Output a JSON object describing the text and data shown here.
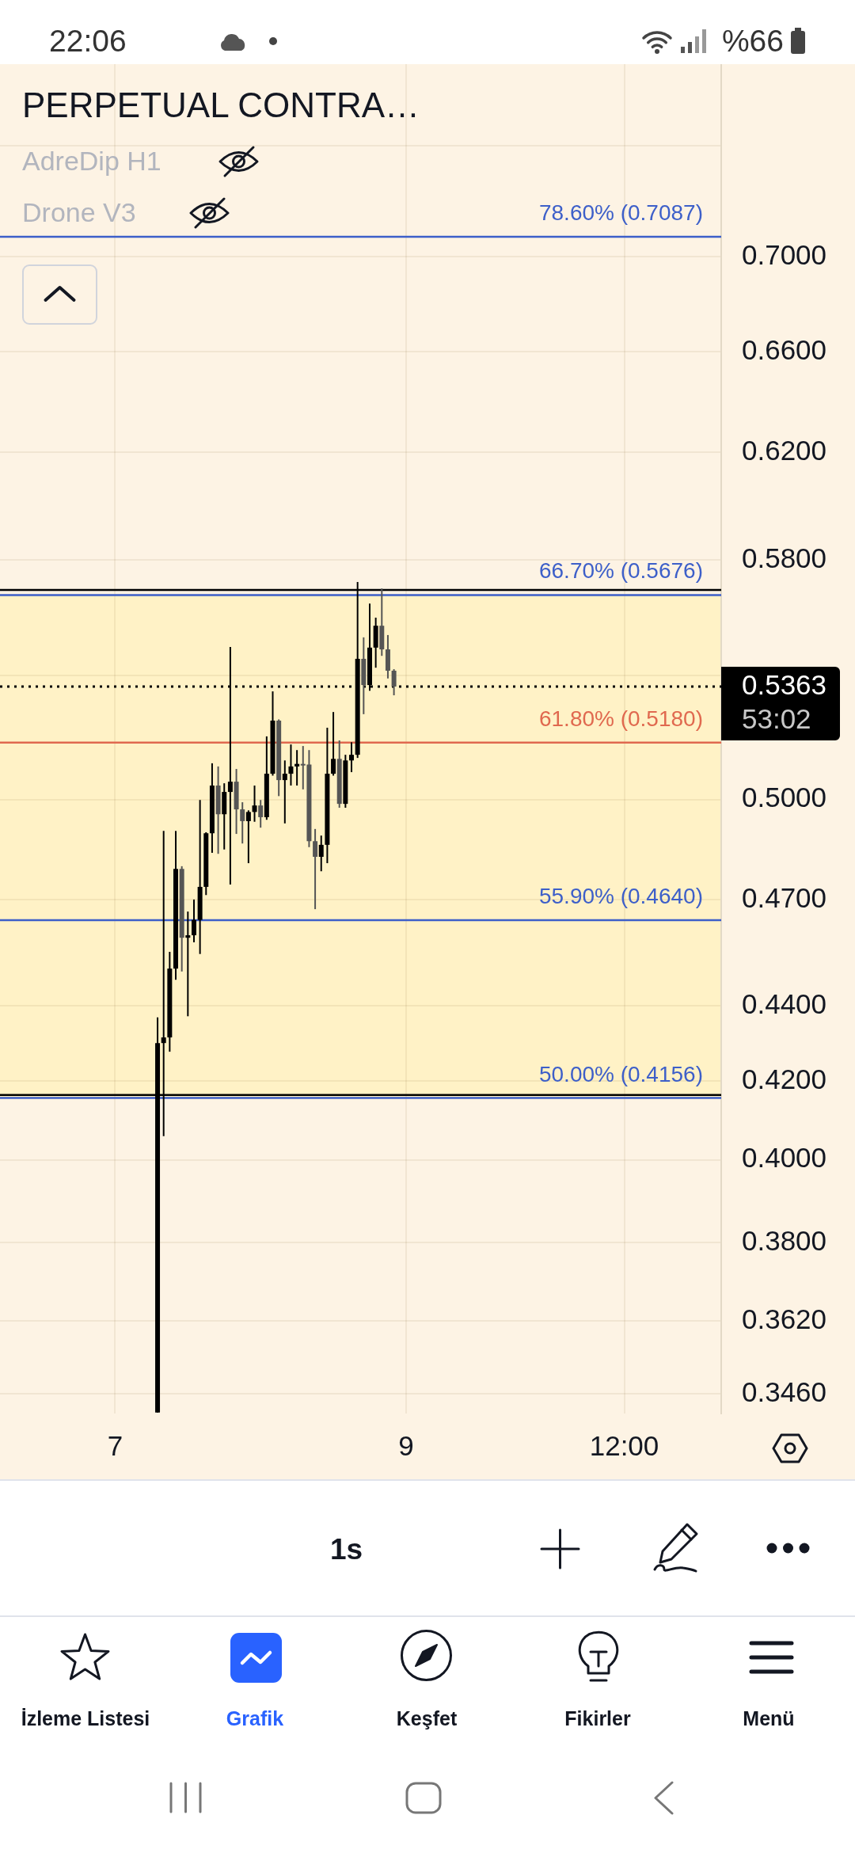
{
  "chart_data": {
    "type": "candlestick",
    "title": "PERPETUAL CONTRA…",
    "categories": [
      null,
      null,
      null,
      null,
      null,
      null,
      null,
      null,
      null,
      null,
      null,
      null,
      null,
      null,
      null,
      null,
      null,
      null,
      null,
      "7",
      null,
      null,
      null,
      null,
      null,
      null,
      null,
      null,
      null,
      null,
      null,
      null,
      null,
      null,
      null,
      null,
      null,
      null,
      null,
      null,
      null,
      null,
      null,
      null,
      null,
      null,
      null,
      null,
      null,
      null,
      null,
      null,
      null,
      null,
      null,
      null,
      null,
      null,
      null,
      null,
      null,
      null,
      null,
      null,
      null,
      null,
      null,
      "9",
      null,
      null,
      null,
      null,
      null,
      null,
      null,
      null,
      null,
      null,
      null,
      null,
      null,
      null,
      null,
      null,
      null,
      null,
      null,
      null,
      null,
      null,
      null,
      null,
      null,
      null,
      null,
      null,
      null,
      null,
      null,
      null,
      null,
      null,
      null,
      "12:00",
      null,
      null,
      null,
      null,
      null,
      null,
      null,
      null,
      null,
      null,
      null,
      null,
      null,
      null,
      null,
      null
    ],
    "ohlc": [
      null,
      null,
      null,
      null,
      null,
      null,
      null,
      null,
      null,
      null,
      null,
      null,
      null,
      null,
      null,
      null,
      null,
      null,
      null,
      null,
      null,
      null,
      null,
      null,
      null,
      null,
      [
        0.342,
        0.4369,
        0.342,
        0.43
      ],
      [
        0.43,
        0.4904,
        0.4059,
        0.4315
      ],
      [
        0.4315,
        0.455,
        0.4277,
        0.4503
      ],
      [
        0.4503,
        0.4904,
        0.4472,
        0.479
      ],
      [
        0.479,
        0.4798,
        0.4495,
        0.459
      ],
      [
        0.459,
        0.4665,
        0.4372,
        0.4597
      ],
      [
        0.4597,
        0.47,
        0.4577,
        0.4641
      ],
      [
        0.4641,
        0.4999,
        0.4544,
        0.4737
      ],
      [
        0.4737,
        0.49,
        0.4713,
        0.4897
      ],
      [
        0.4897,
        0.5114,
        0.4838,
        0.5044
      ],
      [
        0.5044,
        0.5104,
        0.4835,
        0.4955
      ],
      [
        0.4955,
        0.5051,
        0.4848,
        0.5024
      ],
      [
        0.5024,
        0.5496,
        0.4744,
        0.5056
      ],
      [
        0.5056,
        0.5096,
        0.4895,
        0.497
      ],
      [
        0.497,
        0.4992,
        0.4866,
        0.4934
      ],
      [
        0.4934,
        0.4967,
        0.4807,
        0.4962
      ],
      [
        0.4962,
        0.5044,
        0.4932,
        0.4982
      ],
      [
        0.4982,
        0.4999,
        0.4914,
        0.4946
      ],
      [
        0.4946,
        0.52,
        0.4938,
        0.5081
      ],
      [
        0.5081,
        0.5347,
        0.5075,
        0.5251
      ],
      [
        0.5251,
        0.5255,
        0.5011,
        0.5061
      ],
      [
        0.5061,
        0.5123,
        0.4927,
        0.5081
      ],
      [
        0.5081,
        0.5174,
        0.5044,
        0.5104
      ],
      [
        0.5104,
        0.5156,
        0.5044,
        0.5112
      ],
      [
        0.5112,
        0.5169,
        0.5032,
        0.511
      ],
      [
        0.511,
        0.5156,
        0.4855,
        0.4873
      ],
      [
        0.4873,
        0.491,
        0.4672,
        0.4826
      ],
      [
        0.4826,
        0.489,
        0.4783,
        0.4862
      ],
      [
        0.4862,
        0.5228,
        0.4807,
        0.5081
      ],
      [
        0.5081,
        0.5279,
        0.5075,
        0.5128
      ],
      [
        0.5128,
        0.5187,
        0.4975,
        0.4987
      ],
      [
        0.4987,
        0.5141,
        0.4975,
        0.5123
      ],
      [
        0.5123,
        0.5181,
        0.5086,
        0.5141
      ],
      [
        0.5141,
        0.5722,
        0.5131,
        0.5456
      ],
      [
        0.5456,
        0.5529,
        0.5272,
        0.5368
      ],
      [
        0.5368,
        0.5646,
        0.5349,
        0.5494
      ],
      [
        0.5494,
        0.5597,
        0.5426,
        0.5569
      ],
      [
        0.5569,
        0.5699,
        0.5466,
        0.5488
      ],
      [
        0.5488,
        0.5537,
        0.539,
        0.5416
      ],
      [
        0.5416,
        0.5421,
        0.5334,
        0.5363
      ],
      null,
      null,
      null,
      null,
      null,
      null,
      null,
      null,
      null,
      null,
      null,
      null,
      null,
      null,
      null,
      null,
      null,
      null,
      null,
      null,
      null,
      null,
      null,
      null,
      null,
      null,
      null,
      null,
      null,
      null,
      null,
      null,
      null,
      null,
      null,
      null,
      null,
      null,
      null,
      null,
      null,
      null,
      null,
      null,
      null,
      null,
      null,
      null,
      null,
      null,
      null,
      null,
      null,
      null
    ],
    "colors": [
      null,
      null,
      null,
      null,
      null,
      null,
      null,
      null,
      null,
      null,
      null,
      null,
      null,
      null,
      null,
      null,
      null,
      null,
      null,
      null,
      null,
      null,
      null,
      null,
      null,
      null,
      "#000000",
      "#000000",
      "#000000",
      "#000000",
      "#555555",
      "#000000",
      "#000000",
      "#000000",
      "#000000",
      "#000000",
      "#555555",
      "#000000",
      "#000000",
      "#555555",
      "#555555",
      "#000000",
      "#000000",
      "#555555",
      "#000000",
      "#000000",
      "#555555",
      "#000000",
      "#000000",
      "#000000",
      "#555555",
      "#555555",
      "#555555",
      "#000000",
      "#000000",
      "#000000",
      "#555555",
      "#000000",
      "#000000",
      "#000000",
      "#555555",
      "#000000",
      "#000000",
      "#555555",
      "#555555",
      "#555555",
      null,
      null,
      null,
      null,
      null,
      null,
      null,
      null,
      null,
      null,
      null,
      null,
      null,
      null,
      null,
      null,
      null,
      null,
      null,
      null,
      null,
      null,
      null,
      null,
      null,
      null,
      null,
      null,
      null,
      null,
      null,
      null,
      null,
      null,
      null,
      null,
      null,
      null,
      null,
      null,
      null,
      null,
      null,
      null,
      null,
      null,
      null,
      null,
      null,
      null,
      null,
      null,
      null,
      null
    ],
    "ylim": [
      0.3418,
      0.7887
    ],
    "yticks": [
      {
        "value": 0.346,
        "label": "0.3460"
      },
      {
        "value": 0.362,
        "label": "0.3620"
      },
      {
        "value": 0.38,
        "label": "0.3800"
      },
      {
        "value": 0.4,
        "label": "0.4000"
      },
      {
        "value": 0.42,
        "label": "0.4200"
      },
      {
        "value": 0.44,
        "label": "0.4400"
      },
      {
        "value": 0.47,
        "label": "0.4700"
      },
      {
        "value": 0.5,
        "label": "0.5000"
      },
      {
        "value": 0.54,
        "label": null
      },
      {
        "value": 0.58,
        "label": "0.5800"
      },
      {
        "value": 0.62,
        "label": "0.6200"
      },
      {
        "value": 0.66,
        "label": "0.6600"
      },
      {
        "value": 0.7,
        "label": "0.7000"
      },
      {
        "value": 0.75,
        "label": null
      }
    ],
    "log": true,
    "grid": true,
    "bands": [
      {
        "axis": "y",
        "from": 0.4156,
        "to": 0.5676,
        "color": "#fff2c6"
      }
    ],
    "ref_lines": [
      {
        "axis": "y",
        "value": 0.7087,
        "label": "78.60% (0.7087)",
        "color": "#3d5fc9",
        "line_style": "solid"
      },
      {
        "axis": "y",
        "value": 0.5694,
        "color": "#000000",
        "line_style": "solid"
      },
      {
        "axis": "y",
        "value": 0.5676,
        "label": "66.70% (0.5676)",
        "color": "#3d5fc9",
        "line_style": "solid"
      },
      {
        "axis": "y",
        "value": 0.518,
        "label": "61.80% (0.5180)",
        "color": "#e0694f",
        "line_style": "solid"
      },
      {
        "axis": "y",
        "value": 0.464,
        "label": "55.90% (0.4640)",
        "color": "#3d5fc9",
        "line_style": "solid"
      },
      {
        "axis": "y",
        "value": 0.4164,
        "color": "#000000",
        "line_style": "solid"
      },
      {
        "axis": "y",
        "value": 0.4156,
        "label": "50.00% (0.4156)",
        "color": "#3d5fc9",
        "line_style": "solid"
      },
      {
        "axis": "y",
        "value": 0.5363,
        "label": "0.5363",
        "color": "#000000",
        "line_style": "dotted"
      }
    ],
    "annotations": [
      "53:02",
      "AdreDip H1",
      "Drone V3",
      "1s",
      "22:06",
      "%66",
      "İzleme Listesi",
      "Grafik",
      "Keşfet",
      "Fikirler",
      "Menü"
    ]
  }
}
